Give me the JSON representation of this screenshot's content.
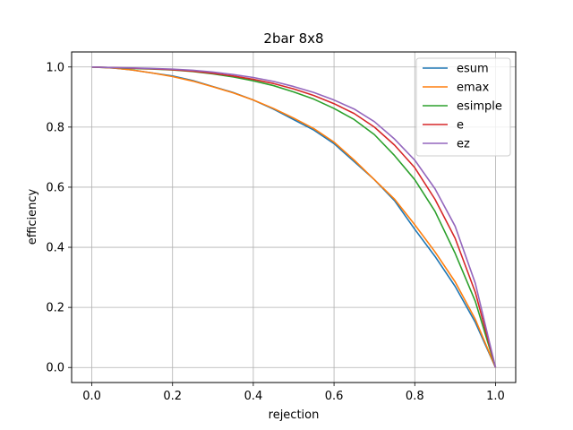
{
  "chart_data": {
    "type": "line",
    "title": "2bar 8x8",
    "xlabel": "rejection",
    "ylabel": "efficiency",
    "xlim": [
      -0.05,
      1.05
    ],
    "ylim": [
      -0.05,
      1.05
    ],
    "xticks": [
      0.0,
      0.2,
      0.4,
      0.6,
      0.8,
      1.0
    ],
    "yticks": [
      0.0,
      0.2,
      0.4,
      0.6,
      0.8,
      1.0
    ],
    "xtick_labels": [
      "0.0",
      "0.2",
      "0.4",
      "0.6",
      "0.8",
      "1.0"
    ],
    "ytick_labels": [
      "0.0",
      "0.2",
      "0.4",
      "0.6",
      "0.8",
      "1.0"
    ],
    "grid": true,
    "legend_position": "top-right",
    "series": [
      {
        "name": "esum",
        "color": "#1f77b4",
        "x": [
          0.0,
          0.05,
          0.1,
          0.15,
          0.2,
          0.25,
          0.3,
          0.35,
          0.4,
          0.45,
          0.5,
          0.55,
          0.6,
          0.65,
          0.7,
          0.75,
          0.8,
          0.85,
          0.9,
          0.95,
          1.0
        ],
        "y": [
          1.0,
          0.997,
          0.99,
          0.98,
          0.97,
          0.955,
          0.935,
          0.915,
          0.89,
          0.86,
          0.825,
          0.79,
          0.745,
          0.685,
          0.625,
          0.555,
          0.46,
          0.37,
          0.27,
          0.15,
          0.0
        ]
      },
      {
        "name": "emax",
        "color": "#ff7f0e",
        "x": [
          0.0,
          0.05,
          0.1,
          0.15,
          0.2,
          0.25,
          0.3,
          0.35,
          0.4,
          0.45,
          0.5,
          0.55,
          0.6,
          0.65,
          0.7,
          0.75,
          0.8,
          0.85,
          0.9,
          0.95,
          1.0
        ],
        "y": [
          1.0,
          0.997,
          0.99,
          0.98,
          0.968,
          0.953,
          0.934,
          0.914,
          0.89,
          0.862,
          0.83,
          0.795,
          0.75,
          0.69,
          0.625,
          0.56,
          0.475,
          0.385,
          0.285,
          0.16,
          0.0
        ]
      },
      {
        "name": "esimple",
        "color": "#2ca02c",
        "x": [
          0.0,
          0.05,
          0.1,
          0.15,
          0.2,
          0.25,
          0.3,
          0.35,
          0.4,
          0.45,
          0.5,
          0.55,
          0.6,
          0.65,
          0.7,
          0.75,
          0.8,
          0.85,
          0.9,
          0.95,
          1.0
        ],
        "y": [
          1.0,
          0.998,
          0.995,
          0.993,
          0.99,
          0.985,
          0.977,
          0.967,
          0.954,
          0.938,
          0.917,
          0.893,
          0.862,
          0.825,
          0.775,
          0.705,
          0.625,
          0.52,
          0.38,
          0.22,
          0.0
        ]
      },
      {
        "name": "e",
        "color": "#d62728",
        "x": [
          0.0,
          0.05,
          0.1,
          0.15,
          0.2,
          0.25,
          0.3,
          0.35,
          0.4,
          0.45,
          0.5,
          0.55,
          0.6,
          0.65,
          0.7,
          0.75,
          0.8,
          0.85,
          0.9,
          0.95,
          1.0
        ],
        "y": [
          1.0,
          0.998,
          0.996,
          0.994,
          0.991,
          0.986,
          0.979,
          0.97,
          0.959,
          0.945,
          0.927,
          0.905,
          0.878,
          0.845,
          0.8,
          0.74,
          0.665,
          0.56,
          0.43,
          0.25,
          0.0
        ]
      },
      {
        "name": "ez",
        "color": "#9467bd",
        "x": [
          0.0,
          0.05,
          0.1,
          0.15,
          0.2,
          0.25,
          0.3,
          0.35,
          0.4,
          0.45,
          0.5,
          0.55,
          0.6,
          0.65,
          0.7,
          0.75,
          0.8,
          0.85,
          0.9,
          0.95,
          1.0
        ],
        "y": [
          1.0,
          0.998,
          0.997,
          0.995,
          0.993,
          0.989,
          0.983,
          0.975,
          0.965,
          0.952,
          0.935,
          0.915,
          0.89,
          0.86,
          0.818,
          0.76,
          0.69,
          0.595,
          0.47,
          0.28,
          0.0
        ]
      }
    ]
  }
}
